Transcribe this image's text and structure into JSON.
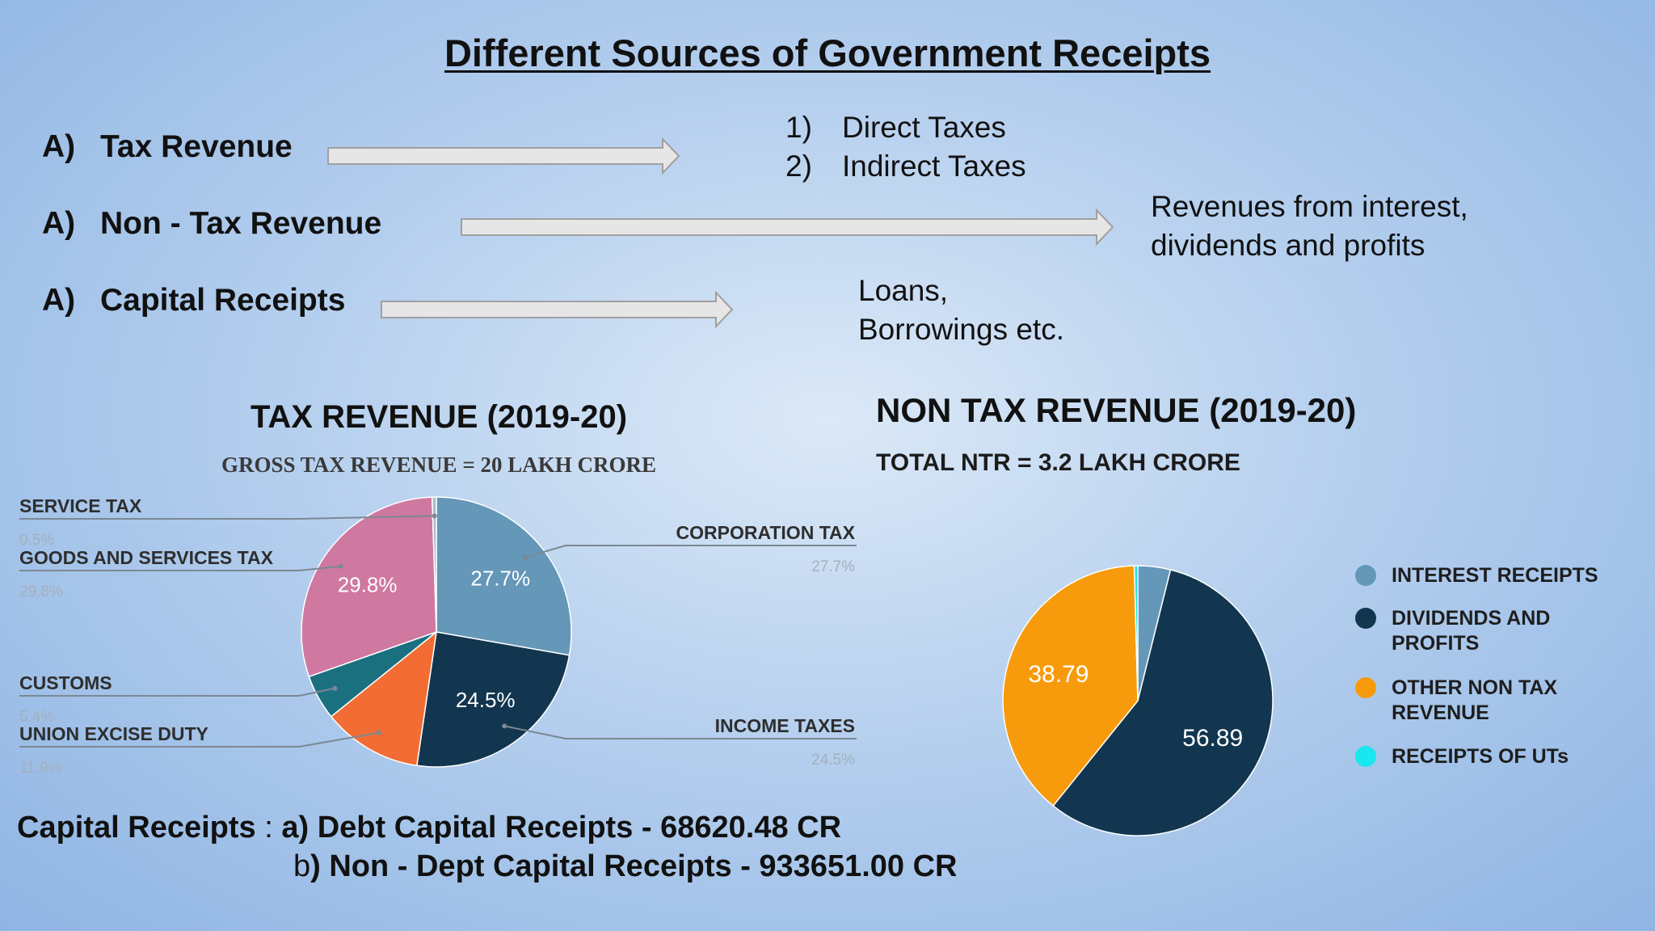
{
  "title": "Different Sources of Government Receipts",
  "rows": [
    {
      "letter": "A)",
      "label": "Tax Revenue",
      "items": [
        {
          "num": "1)",
          "text": "Direct Taxes"
        },
        {
          "num": "2)",
          "text": "Indirect Taxes"
        }
      ]
    },
    {
      "letter": "A)",
      "label": "Non - Tax Revenue",
      "lines": [
        "Revenues from interest,",
        "dividends and profits"
      ]
    },
    {
      "letter": "A)",
      "label": "Capital Receipts",
      "lines": [
        "Loans,",
        "Borrowings etc."
      ]
    }
  ],
  "capital_receipts": {
    "label": "Capital Receipts",
    "colon": ":",
    "line_a": "a) Debt Capital Receipts - 68620.48 CR",
    "line_b_prefix": "b",
    "line_b_rest": ") Non - Dept Capital Receipts - 933651.00 CR"
  },
  "colors": {
    "corporation": "#6497b8",
    "income": "#12364f",
    "excise": "#f36c33",
    "customs": "#1b7080",
    "gst": "#cf78a0",
    "service": "#a8bfc7",
    "interest": "#6497b8",
    "dividends": "#12364f",
    "other": "#f79b0c",
    "uts": "#19e6ee"
  },
  "chart_data": [
    {
      "type": "pie",
      "title": "TAX REVENUE (2019-20)",
      "subtitle": "GROSS TAX REVENUE = 20 LAKH CRORE",
      "slices": [
        {
          "name": "CORPORATION TAX",
          "value": 27.7,
          "label": "27.7%",
          "slice_label": "27.7%",
          "color": "#6497b8"
        },
        {
          "name": "INCOME TAXES",
          "value": 24.5,
          "label": "24.5%",
          "slice_label": "24.5%",
          "color": "#12364f"
        },
        {
          "name": "UNION EXCISE DUTY",
          "value": 11.9,
          "label": "11.9%",
          "slice_label": "",
          "color": "#f36c33"
        },
        {
          "name": "CUSTOMS",
          "value": 5.4,
          "label": "5.4%",
          "slice_label": "",
          "color": "#1b7080"
        },
        {
          "name": "GOODS AND SERVICES TAX",
          "value": 29.8,
          "label": "29.8%",
          "slice_label": "29.8%",
          "color": "#cf78a0"
        },
        {
          "name": "SERVICE TAX",
          "value": 0.5,
          "label": "0.5%",
          "slice_label": "",
          "color": "#a8bfc7"
        }
      ]
    },
    {
      "type": "pie",
      "title": "NON TAX REVENUE (2019-20)",
      "subtitle": "TOTAL NTR = 3.2 LAKH CRORE",
      "legend_position": "right",
      "slices": [
        {
          "name": "INTEREST RECEIPTS",
          "value": 3.9,
          "slice_label": "",
          "color": "#6497b8"
        },
        {
          "name": "DIVIDENDS AND PROFITS",
          "value": 56.89,
          "slice_label": "56.89",
          "color": "#12364f"
        },
        {
          "name": "OTHER NON TAX REVENUE",
          "value": 38.79,
          "slice_label": "38.79",
          "color": "#f79b0c"
        },
        {
          "name": "RECEIPTS OF UTs",
          "value": 0.42,
          "slice_label": "",
          "color": "#19e6ee"
        }
      ]
    }
  ]
}
